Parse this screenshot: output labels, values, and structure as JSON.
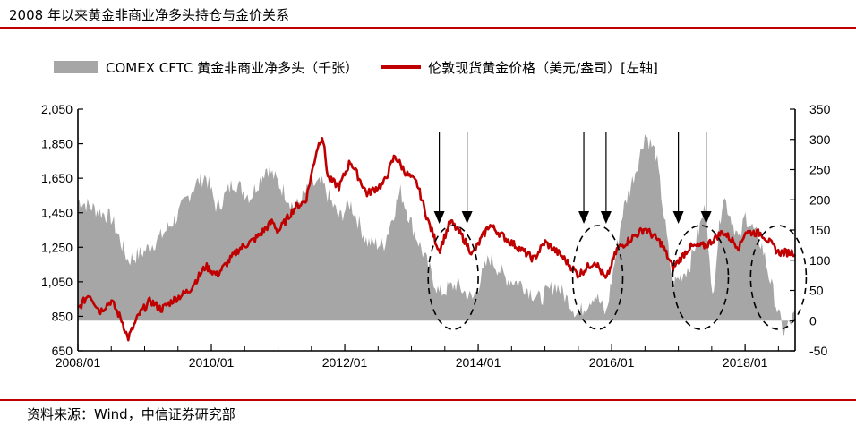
{
  "title": "2008 年以来黄金非商业净多头持仓与金价关系",
  "source": "资料来源：Wind，中信证券研究部",
  "chart_data": {
    "type": "line",
    "x_range": [
      "2008/01",
      "2018/10"
    ],
    "x_ticks": [
      "2008/01",
      "2010/01",
      "2012/01",
      "2014/01",
      "2016/01",
      "2018/01"
    ],
    "y_left": {
      "range": [
        650,
        2050
      ],
      "ticks": [
        "650",
        "850",
        "1,050",
        "1,250",
        "1,450",
        "1,650",
        "1,850",
        "2,050"
      ]
    },
    "y_right": {
      "range": [
        -50,
        350
      ],
      "ticks": [
        "-50",
        "0",
        "50",
        "100",
        "150",
        "200",
        "250",
        "300",
        "350"
      ]
    },
    "grid": false,
    "legend": "top",
    "series": [
      {
        "name": "COMEX CFTC 黄金非商业净多头（千张）",
        "type": "area",
        "axis": "right",
        "color": "#a6a6a6",
        "points": [
          [
            "2008/01",
            200
          ],
          [
            "2008/04",
            185
          ],
          [
            "2008/07",
            170
          ],
          [
            "2008/10",
            100
          ],
          [
            "2009/01",
            115
          ],
          [
            "2009/04",
            140
          ],
          [
            "2009/07",
            175
          ],
          [
            "2009/10",
            225
          ],
          [
            "2009/12",
            240
          ],
          [
            "2010/02",
            185
          ],
          [
            "2010/05",
            230
          ],
          [
            "2010/08",
            205
          ],
          [
            "2010/11",
            255
          ],
          [
            "2011/02",
            215
          ],
          [
            "2011/04",
            185
          ],
          [
            "2011/07",
            225
          ],
          [
            "2011/09",
            225
          ],
          [
            "2011/12",
            170
          ],
          [
            "2012/02",
            195
          ],
          [
            "2012/05",
            130
          ],
          [
            "2012/08",
            125
          ],
          [
            "2012/11",
            215
          ],
          [
            "2013/01",
            160
          ],
          [
            "2013/04",
            90
          ],
          [
            "2013/06",
            45
          ],
          [
            "2013/09",
            60
          ],
          [
            "2013/12",
            35
          ],
          [
            "2014/03",
            105
          ],
          [
            "2014/06",
            70
          ],
          [
            "2014/09",
            60
          ],
          [
            "2014/12",
            35
          ],
          [
            "2015/03",
            60
          ],
          [
            "2015/07",
            10
          ],
          [
            "2015/10",
            45
          ],
          [
            "2015/12",
            10
          ],
          [
            "2016/03",
            180
          ],
          [
            "2016/06",
            270
          ],
          [
            "2016/07",
            310
          ],
          [
            "2016/09",
            275
          ],
          [
            "2016/12",
            60
          ],
          [
            "2017/03",
            90
          ],
          [
            "2017/06",
            195
          ],
          [
            "2017/07",
            30
          ],
          [
            "2017/09",
            210
          ],
          [
            "2017/12",
            130
          ],
          [
            "2018/01",
            175
          ],
          [
            "2018/04",
            125
          ],
          [
            "2018/07",
            10
          ],
          [
            "2018/08",
            -20
          ],
          [
            "2018/10",
            10
          ]
        ]
      },
      {
        "name": "伦敦现货黄金价格（美元/盎司）[左轴]",
        "type": "line",
        "axis": "left",
        "color": "#c00000",
        "points": [
          [
            "2008/01",
            890
          ],
          [
            "2008/03",
            980
          ],
          [
            "2008/05",
            880
          ],
          [
            "2008/07",
            940
          ],
          [
            "2008/09",
            820
          ],
          [
            "2008/10",
            720
          ],
          [
            "2008/12",
            860
          ],
          [
            "2009/02",
            940
          ],
          [
            "2009/04",
            890
          ],
          [
            "2009/06",
            940
          ],
          [
            "2009/09",
            1000
          ],
          [
            "2009/12",
            1140
          ],
          [
            "2010/02",
            1090
          ],
          [
            "2010/06",
            1240
          ],
          [
            "2010/09",
            1300
          ],
          [
            "2010/12",
            1400
          ],
          [
            "2011/01",
            1340
          ],
          [
            "2011/04",
            1480
          ],
          [
            "2011/06",
            1520
          ],
          [
            "2011/08",
            1820
          ],
          [
            "2011/09",
            1900
          ],
          [
            "2011/10",
            1650
          ],
          [
            "2011/12",
            1600
          ],
          [
            "2012/02",
            1750
          ],
          [
            "2012/05",
            1560
          ],
          [
            "2012/08",
            1620
          ],
          [
            "2012/10",
            1780
          ],
          [
            "2012/12",
            1680
          ],
          [
            "2013/02",
            1620
          ],
          [
            "2013/04",
            1400
          ],
          [
            "2013/06",
            1230
          ],
          [
            "2013/08",
            1400
          ],
          [
            "2013/10",
            1320
          ],
          [
            "2013/12",
            1210
          ],
          [
            "2014/03",
            1380
          ],
          [
            "2014/06",
            1300
          ],
          [
            "2014/09",
            1230
          ],
          [
            "2014/11",
            1180
          ],
          [
            "2015/01",
            1280
          ],
          [
            "2015/04",
            1200
          ],
          [
            "2015/07",
            1090
          ],
          [
            "2015/10",
            1170
          ],
          [
            "2015/12",
            1060
          ],
          [
            "2016/02",
            1240
          ],
          [
            "2016/07",
            1360
          ],
          [
            "2016/10",
            1270
          ],
          [
            "2016/12",
            1130
          ],
          [
            "2017/03",
            1250
          ],
          [
            "2017/06",
            1260
          ],
          [
            "2017/09",
            1340
          ],
          [
            "2017/12",
            1250
          ],
          [
            "2018/01",
            1340
          ],
          [
            "2018/04",
            1330
          ],
          [
            "2018/07",
            1220
          ],
          [
            "2018/10",
            1220
          ]
        ]
      }
    ],
    "annotations": [
      {
        "type": "arrow",
        "x": "2013/06"
      },
      {
        "type": "arrow",
        "x": "2013/11"
      },
      {
        "type": "arrow",
        "x": "2015/08"
      },
      {
        "type": "arrow",
        "x": "2015/12"
      },
      {
        "type": "arrow",
        "x": "2017/01"
      },
      {
        "type": "arrow",
        "x": "2017/06"
      },
      {
        "type": "ellipse",
        "x": [
          "2013/04",
          "2014/01"
        ]
      },
      {
        "type": "ellipse",
        "x": [
          "2015/06",
          "2016/03"
        ]
      },
      {
        "type": "ellipse",
        "x": [
          "2016/12",
          "2017/10"
        ]
      },
      {
        "type": "ellipse",
        "x": [
          "2018/02",
          "2018/12"
        ]
      }
    ]
  }
}
